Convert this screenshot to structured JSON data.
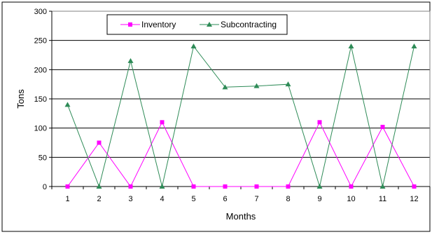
{
  "chart_data": {
    "type": "line",
    "categories": [
      "1",
      "2",
      "3",
      "4",
      "5",
      "6",
      "7",
      "8",
      "9",
      "10",
      "11",
      "12"
    ],
    "series": [
      {
        "name": "Inventory",
        "color": "#ff00ff",
        "marker": "square",
        "values": [
          0,
          75,
          0,
          110,
          0,
          0,
          0,
          0,
          110,
          0,
          102,
          0
        ]
      },
      {
        "name": "Subcontracting",
        "color": "#2e8b57",
        "marker": "triangle",
        "values": [
          140,
          0,
          215,
          0,
          240,
          170,
          172,
          175,
          0,
          240,
          0,
          240
        ]
      }
    ],
    "xlabel": "Months",
    "ylabel": "Tons",
    "ylim": [
      0,
      300
    ],
    "yticks": [
      0,
      50,
      100,
      150,
      200,
      250,
      300
    ],
    "grid": "horizontal",
    "legend": "top-center"
  }
}
